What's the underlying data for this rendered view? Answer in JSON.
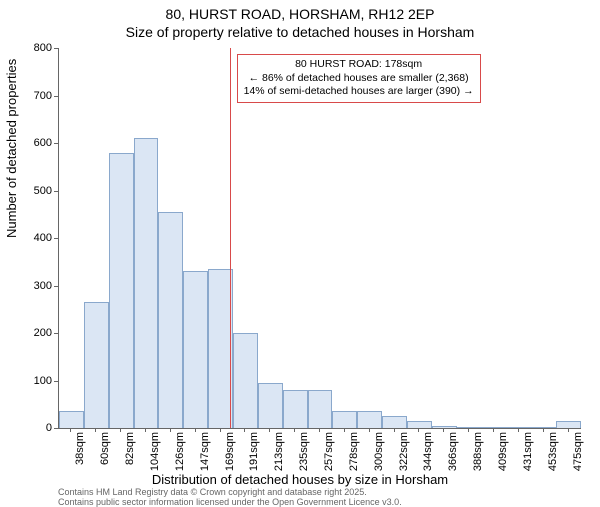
{
  "title": "80, HURST ROAD, HORSHAM, RH12 2EP",
  "subtitle": "Size of property relative to detached houses in Horsham",
  "ylabel": "Number of detached properties",
  "xlabel": "Distribution of detached houses by size in Horsham",
  "chart": {
    "type": "histogram",
    "ylim": [
      0,
      800
    ],
    "ytick_step": 100,
    "bar_fill": "#dbe6f4",
    "bar_stroke": "#8aa8cc",
    "bar_width": 1.0,
    "background_color": "#ffffff",
    "categories": [
      "38sqm",
      "60sqm",
      "82sqm",
      "104sqm",
      "126sqm",
      "147sqm",
      "169sqm",
      "191sqm",
      "213sqm",
      "235sqm",
      "257sqm",
      "278sqm",
      "300sqm",
      "322sqm",
      "344sqm",
      "366sqm",
      "388sqm",
      "409sqm",
      "431sqm",
      "453sqm",
      "475sqm"
    ],
    "values": [
      35,
      265,
      580,
      610,
      455,
      330,
      335,
      200,
      95,
      80,
      80,
      35,
      35,
      25,
      15,
      5,
      3,
      3,
      3,
      3,
      15
    ],
    "marker": {
      "value_sqm": 178,
      "color": "#d84a4a",
      "line_width": 1
    },
    "annotation": {
      "border_color": "#d84a4a",
      "lines": [
        "80 HURST ROAD: 178sqm",
        "← 86% of detached houses are smaller (2,368)",
        "14% of semi-detached houses are larger (390) →"
      ]
    }
  },
  "footer": {
    "line1": "Contains HM Land Registry data © Crown copyright and database right 2025.",
    "line2": "Contains public sector information licensed under the Open Government Licence v3.0."
  }
}
